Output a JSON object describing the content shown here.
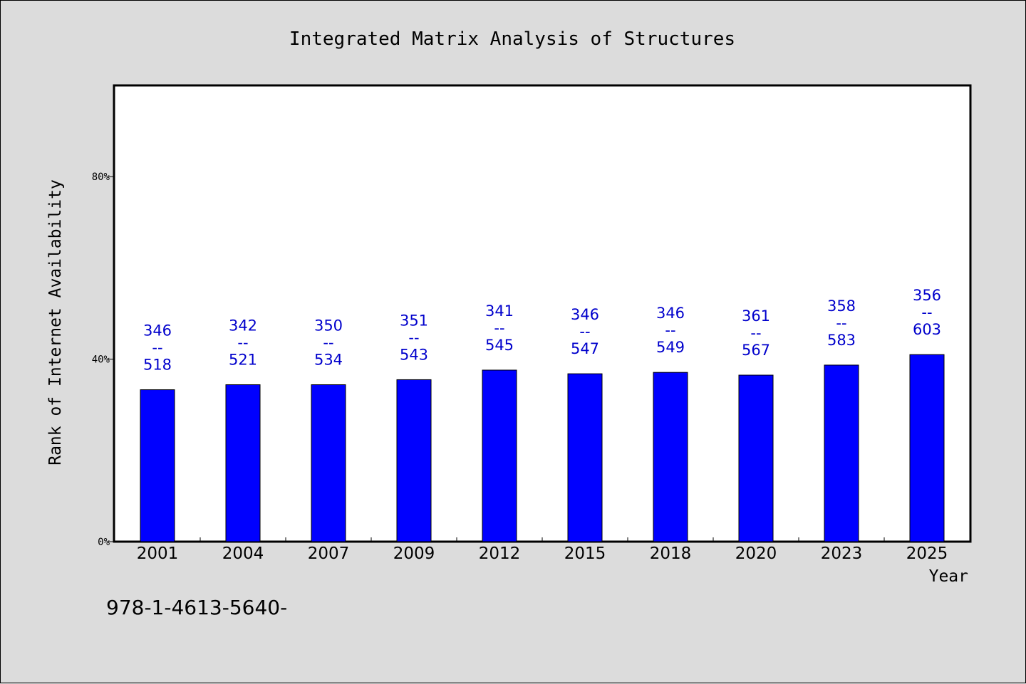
{
  "chart_data": {
    "type": "bar",
    "title": "Integrated Matrix Analysis of Structures",
    "xlabel": "Year",
    "ylabel": "Rank of Internet Availability",
    "categories": [
      "2001",
      "2004",
      "2007",
      "2009",
      "2012",
      "2015",
      "2018",
      "2020",
      "2023",
      "2025"
    ],
    "values": [
      33.3,
      34.4,
      34.4,
      35.5,
      37.6,
      36.8,
      37.1,
      36.5,
      38.7,
      41.0
    ],
    "value_labels": [
      {
        "top": "346",
        "sep": "--",
        "bottom": "518"
      },
      {
        "top": "342",
        "sep": "--",
        "bottom": "521"
      },
      {
        "top": "350",
        "sep": "--",
        "bottom": "534"
      },
      {
        "top": "351",
        "sep": "--",
        "bottom": "543"
      },
      {
        "top": "341",
        "sep": "--",
        "bottom": "545"
      },
      {
        "top": "346",
        "sep": "--",
        "bottom": "547"
      },
      {
        "top": "346",
        "sep": "--",
        "bottom": "549"
      },
      {
        "top": "361",
        "sep": "--",
        "bottom": "567"
      },
      {
        "top": "358",
        "sep": "--",
        "bottom": "583"
      },
      {
        "top": "356",
        "sep": "--",
        "bottom": "603"
      }
    ],
    "yticks": [
      0,
      40,
      80
    ],
    "ytick_labels": [
      "0%",
      "40%",
      "80%"
    ],
    "ylim": [
      0,
      100
    ],
    "grid": false,
    "colors": {
      "bar": "#0000ff",
      "label": "#0000cc",
      "background": "#dcdcdc",
      "plot_background": "#ffffff"
    }
  },
  "footnote": "978-1-4613-5640-"
}
